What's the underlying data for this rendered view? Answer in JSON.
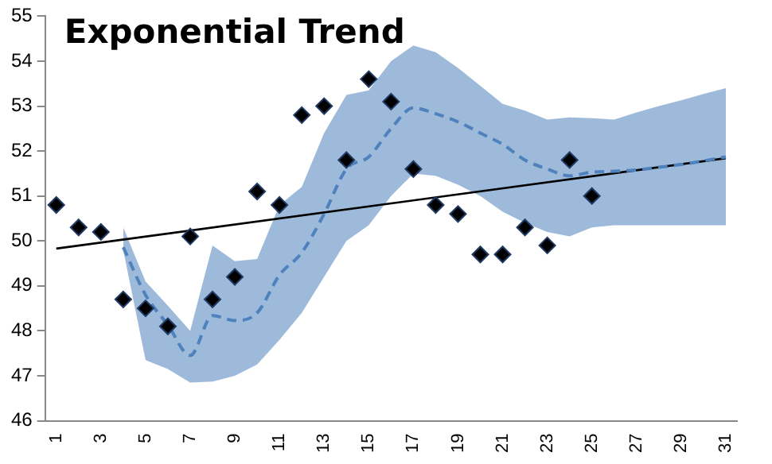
{
  "chart_data": {
    "type": "line",
    "title": "Exponential Trend",
    "categories": [
      "1",
      null,
      "3",
      null,
      "5",
      null,
      "7",
      null,
      "9",
      null,
      "11",
      null,
      "13",
      null,
      "15",
      null,
      "17",
      null,
      "19",
      null,
      "21",
      null,
      "23",
      null,
      "25",
      null,
      "27",
      null,
      "29",
      null,
      "31"
    ],
    "ylim": [
      46,
      55
    ],
    "yticks": [
      46,
      47,
      48,
      49,
      50,
      51,
      52,
      53,
      54,
      55
    ],
    "grid": false,
    "legend": false,
    "series": [
      {
        "color": "#4f81bd",
        "line_style": "dashed",
        "values": [
          null,
          null,
          null,
          49.86,
          48.8,
          48.13,
          47.45,
          48.34,
          48.23,
          48.4,
          49.24,
          49.74,
          50.6,
          51.6,
          51.87,
          52.5,
          52.96,
          52.83,
          52.65,
          52.4,
          52.15,
          51.8,
          51.6,
          51.45,
          51.53,
          51.55,
          51.58,
          51.64,
          51.7,
          51.78,
          51.87
        ],
        "lower": [
          null,
          null,
          null,
          49.8,
          47.35,
          47.15,
          46.85,
          46.87,
          47.0,
          47.25,
          47.8,
          48.4,
          49.2,
          50.0,
          50.35,
          51.0,
          51.5,
          51.45,
          51.25,
          51.0,
          50.65,
          50.4,
          50.2,
          50.1,
          50.3,
          50.35,
          50.35,
          50.35,
          50.35,
          50.35,
          50.35
        ],
        "upper": [
          null,
          null,
          null,
          50.3,
          49.1,
          48.56,
          48.0,
          49.9,
          49.55,
          49.6,
          50.8,
          51.2,
          52.4,
          53.25,
          53.35,
          54.0,
          54.35,
          54.2,
          53.85,
          53.45,
          53.05,
          52.9,
          52.7,
          52.75,
          52.73,
          52.7,
          52.86,
          53.0,
          53.13,
          53.27,
          53.4
        ]
      },
      {
        "color": "#000000",
        "values": [
          49.83,
          null,
          null,
          null,
          null,
          null,
          null,
          null,
          null,
          null,
          null,
          null,
          null,
          null,
          null,
          null,
          null,
          null,
          null,
          null,
          null,
          null,
          null,
          null,
          null,
          null,
          null,
          null,
          null,
          null,
          51.84
        ]
      },
      {
        "type": "scatter",
        "color": "#000000",
        "marker": "diamond",
        "values": [
          50.8,
          50.3,
          50.2,
          48.7,
          48.5,
          48.1,
          50.1,
          48.7,
          49.2,
          51.1,
          50.8,
          52.8,
          53.0,
          51.8,
          53.6,
          53.1,
          51.6,
          50.8,
          50.6,
          49.7,
          49.7,
          50.3,
          49.9,
          51.8,
          51.0,
          null,
          null,
          null,
          null,
          null,
          null
        ]
      }
    ]
  }
}
